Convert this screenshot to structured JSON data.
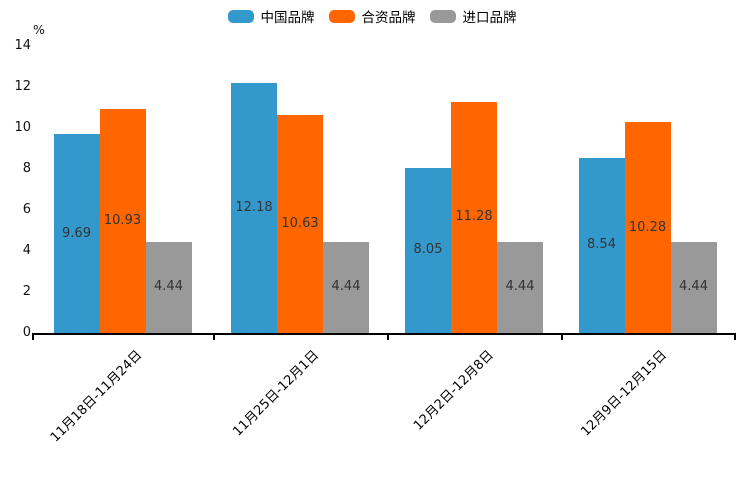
{
  "chart_data": {
    "type": "bar",
    "title": "",
    "ylabel": "%",
    "xlabel": "",
    "categories": [
      "11月18日-11月24日",
      "11月25日-12月1日",
      "12月2日-12月8日",
      "12月9日-12月15日"
    ],
    "series": [
      {
        "name": "中国品牌",
        "color": "#3399cc",
        "values": [
          9.69,
          12.18,
          8.05,
          8.54
        ]
      },
      {
        "name": "合资品牌",
        "color": "#ff6600",
        "values": [
          10.93,
          10.63,
          11.28,
          10.28
        ]
      },
      {
        "name": "进口品牌",
        "color": "#999999",
        "values": [
          4.44,
          4.44,
          4.44,
          4.44
        ]
      }
    ],
    "y_ticks": [
      0,
      2,
      4,
      6,
      8,
      10,
      12,
      14
    ],
    "ylim": [
      0,
      14
    ],
    "grid": false,
    "legend_position": "top",
    "value_labels": true,
    "value_label_color": "#333333",
    "axis_color": "#000000"
  }
}
